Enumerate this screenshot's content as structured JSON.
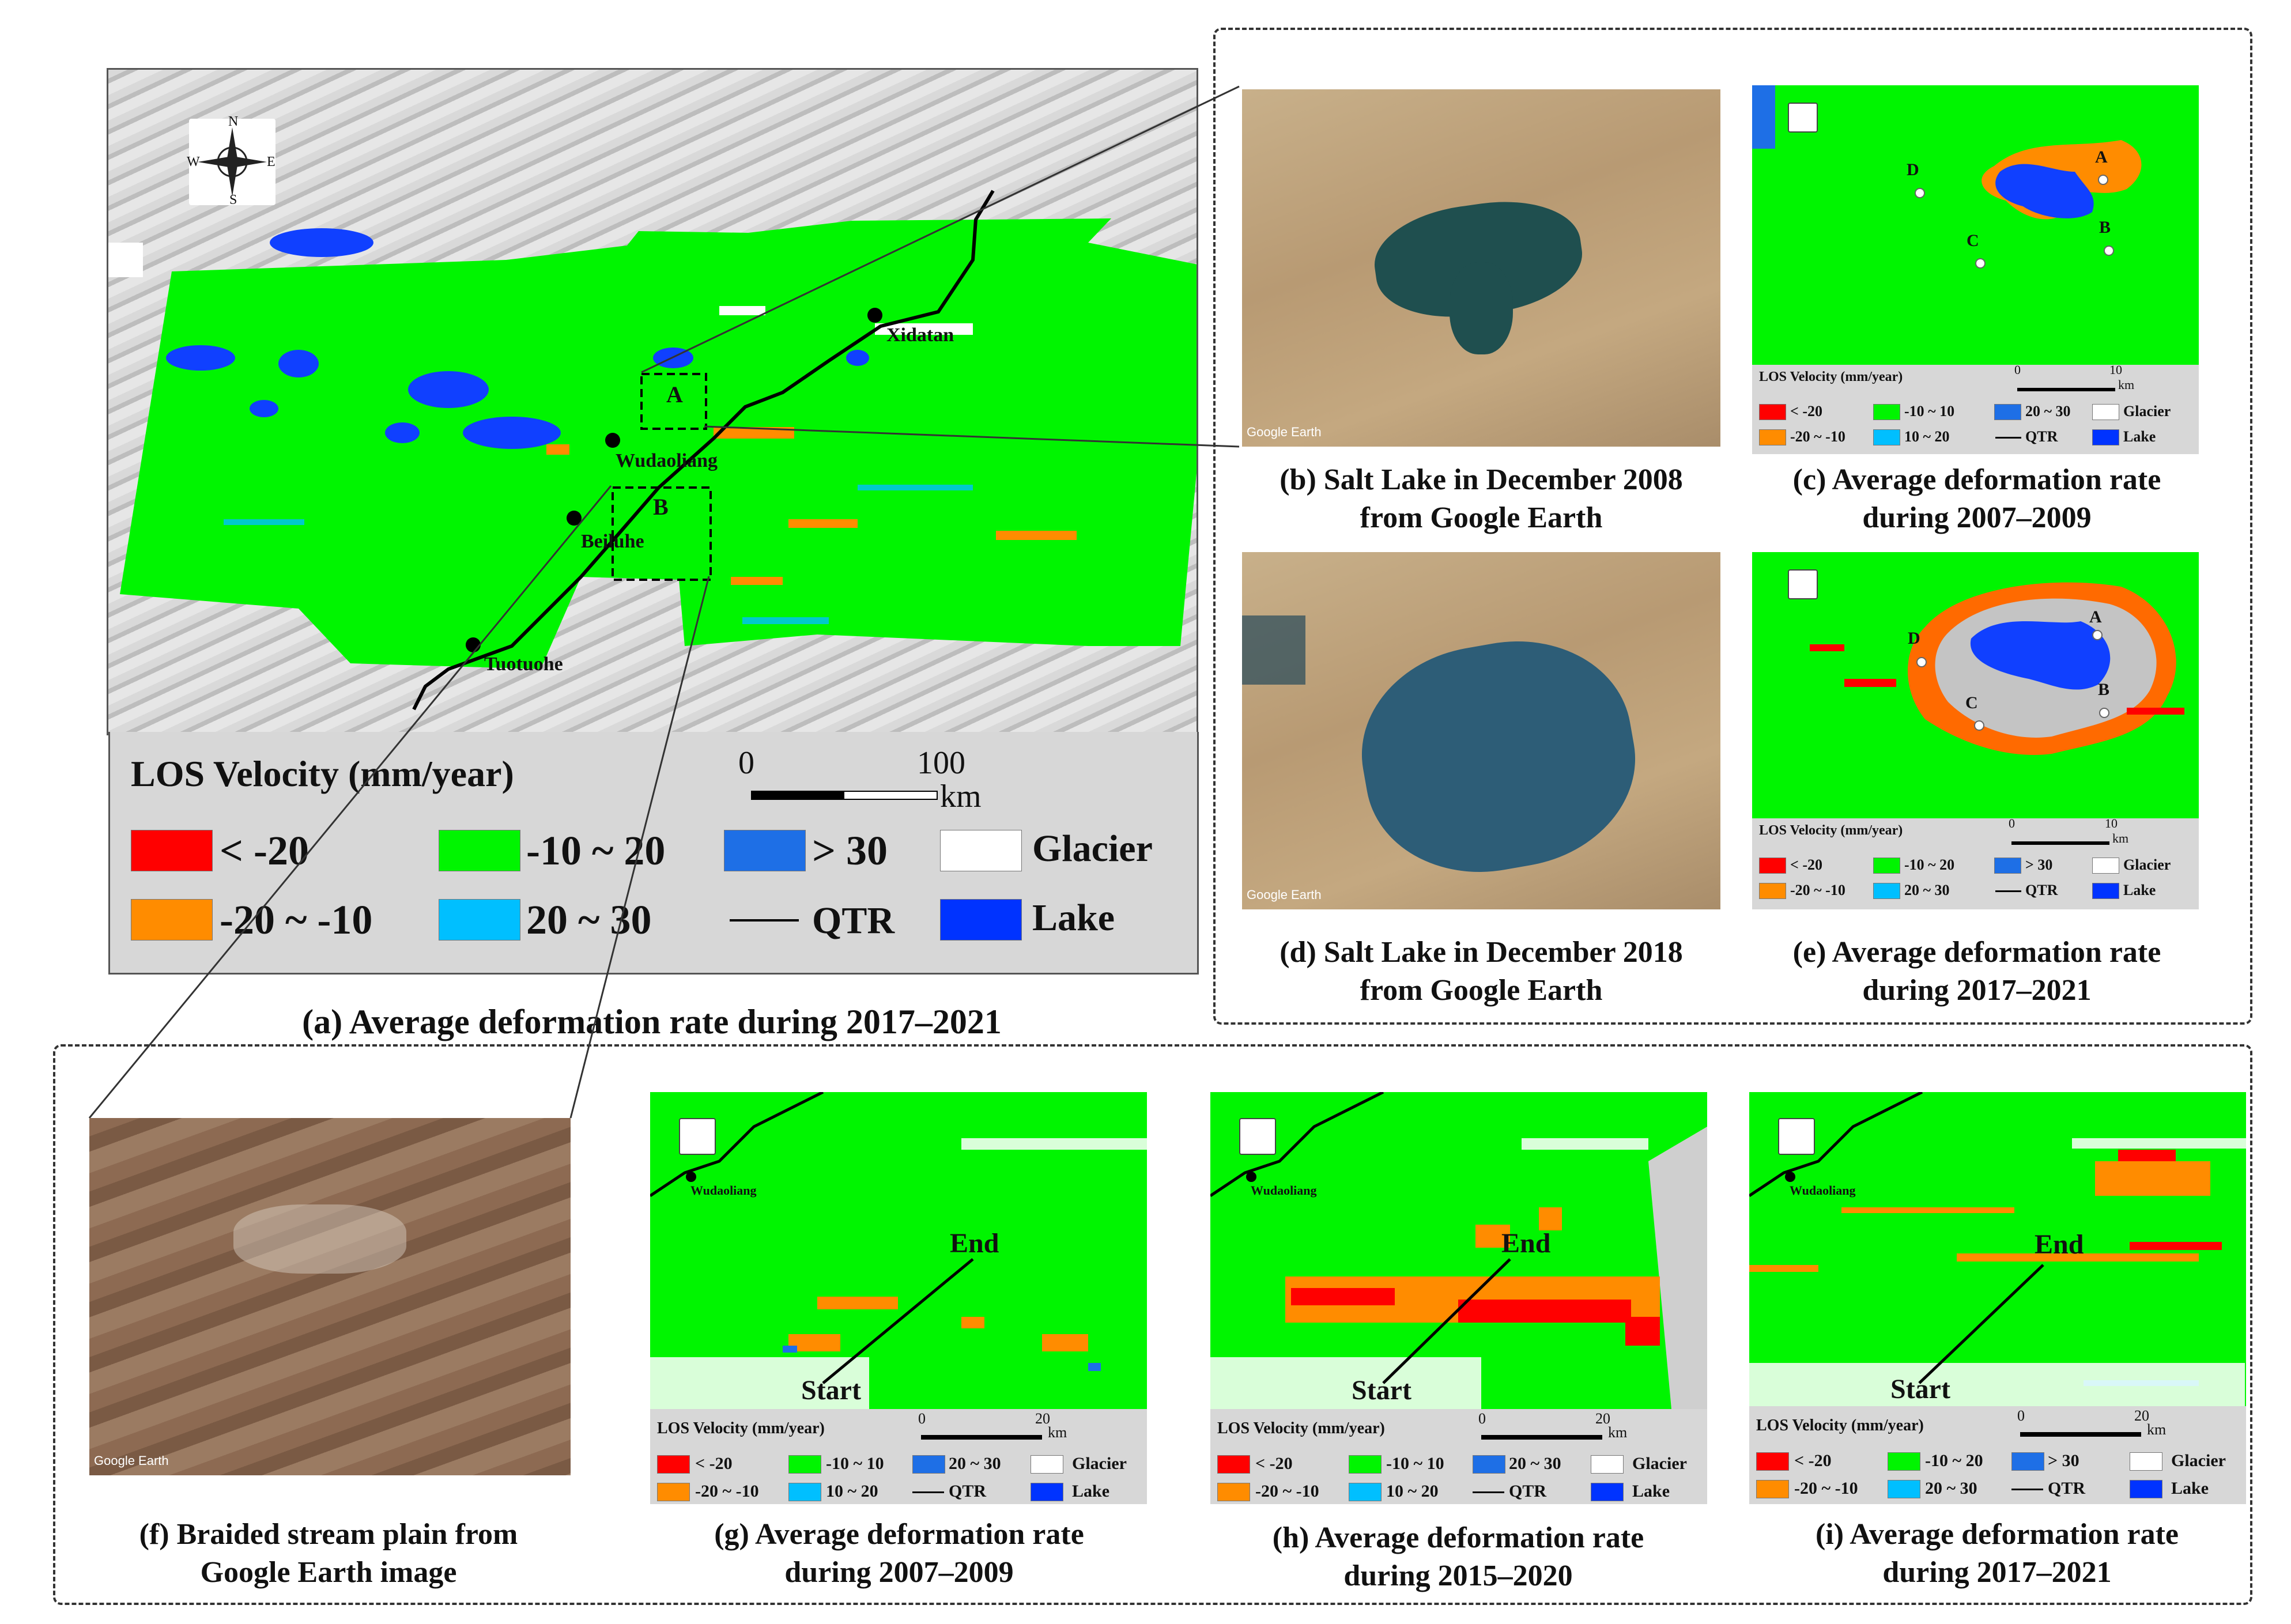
{
  "panel_a": {
    "towns": [
      "Xidatan",
      "Wudaoliang",
      "Beiluhe",
      "Tuotuohe"
    ],
    "box_labels": [
      "A",
      "B"
    ],
    "compass": {
      "n": "N",
      "s": "S",
      "e": "E",
      "w": "W"
    },
    "legend": {
      "title": "LOS Velocity (mm/year)",
      "scale_start": "0",
      "scale_end": "100",
      "scale_unit": "km",
      "items": [
        {
          "label": "< -20",
          "color": "#ff0000"
        },
        {
          "label": "-20 ~ -10",
          "color": "#ff8c00"
        },
        {
          "label": "-10 ~ 20",
          "color": "#00f500"
        },
        {
          "label": "20 ~ 30",
          "color": "#00bfff"
        },
        {
          "label": "> 30",
          "color": "#1e6fe6"
        },
        {
          "label": "QTR",
          "color": "#000000"
        },
        {
          "label": "Glacier",
          "color": "#ffffff"
        },
        {
          "label": "Lake",
          "color": "#0033ff"
        }
      ]
    },
    "caption": "(a) Average deformation rate during 2017–2021"
  },
  "panel_b": {
    "watermark": "Google Earth",
    "caption1": "(b) Salt Lake in December 2008",
    "caption2": "from Google Earth"
  },
  "panel_c": {
    "points": [
      "A",
      "B",
      "C",
      "D"
    ],
    "legend": {
      "title": "LOS Velocity (mm/year)",
      "scale_start": "0",
      "scale_end": "10",
      "scale_unit": "km",
      "items": [
        "< -20",
        "-10 ~ 10",
        "20 ~ 30",
        "Glacier",
        "-20 ~ -10",
        "10 ~ 20",
        "QTR",
        "Lake"
      ]
    },
    "caption1": "(c) Average deformation rate",
    "caption2": "during 2007–2009"
  },
  "panel_d": {
    "watermark": "Google Earth",
    "caption1": "(d) Salt Lake in December 2018",
    "caption2": "from Google Earth"
  },
  "panel_e": {
    "points": [
      "A",
      "B",
      "C",
      "D"
    ],
    "legend": {
      "title": "LOS Velocity (mm/year)",
      "scale_start": "0",
      "scale_end": "10",
      "scale_unit": "km",
      "items": [
        "< -20",
        "-10 ~ 20",
        "> 30",
        "Glacier",
        "-20 ~ -10",
        "20 ~ 30",
        "QTR",
        "Lake"
      ]
    },
    "caption1": "(e) Average deformation rate",
    "caption2": "during 2017–2021"
  },
  "panel_f": {
    "watermark": "Google Earth",
    "caption1": "(f)  Braided stream plain from",
    "caption2": "Google Earth image"
  },
  "panel_g": {
    "town": "Wudaoliang",
    "start": "Start",
    "end": "End",
    "legend": {
      "title": "LOS Velocity (mm/year)",
      "scale_start": "0",
      "scale_end": "20",
      "scale_unit": "km",
      "items": [
        "< -20",
        "-10 ~ 10",
        "20 ~ 30",
        "Glacier",
        "-20 ~ -10",
        "10 ~ 20",
        "QTR",
        "Lake"
      ]
    },
    "caption1": "(g) Average deformation rate",
    "caption2": "during 2007–2009"
  },
  "panel_h": {
    "town": "Wudaoliang",
    "start": "Start",
    "end": "End",
    "legend": {
      "title": "LOS Velocity (mm/year)",
      "scale_start": "0",
      "scale_end": "20",
      "scale_unit": "km",
      "items": [
        "< -20",
        "-10 ~ 10",
        "20 ~ 30",
        "Glacier",
        "-20 ~ -10",
        "10 ~ 20",
        "QTR",
        "Lake"
      ]
    },
    "caption1": "(h) Average deformation rate",
    "caption2": "during 2015–2020"
  },
  "panel_i": {
    "town": "Wudaoliang",
    "start": "Start",
    "end": "End",
    "legend": {
      "title": "LOS Velocity (mm/year)",
      "scale_start": "0",
      "scale_end": "20",
      "scale_unit": "km",
      "items": [
        "< -20",
        "-10 ~ 20",
        "> 30",
        "Glacier",
        "-20 ~ -10",
        "20 ~ 30",
        "QTR",
        "Lake"
      ]
    },
    "caption1": "(i) Average deformation rate",
    "caption2": "during 2017–2021"
  }
}
